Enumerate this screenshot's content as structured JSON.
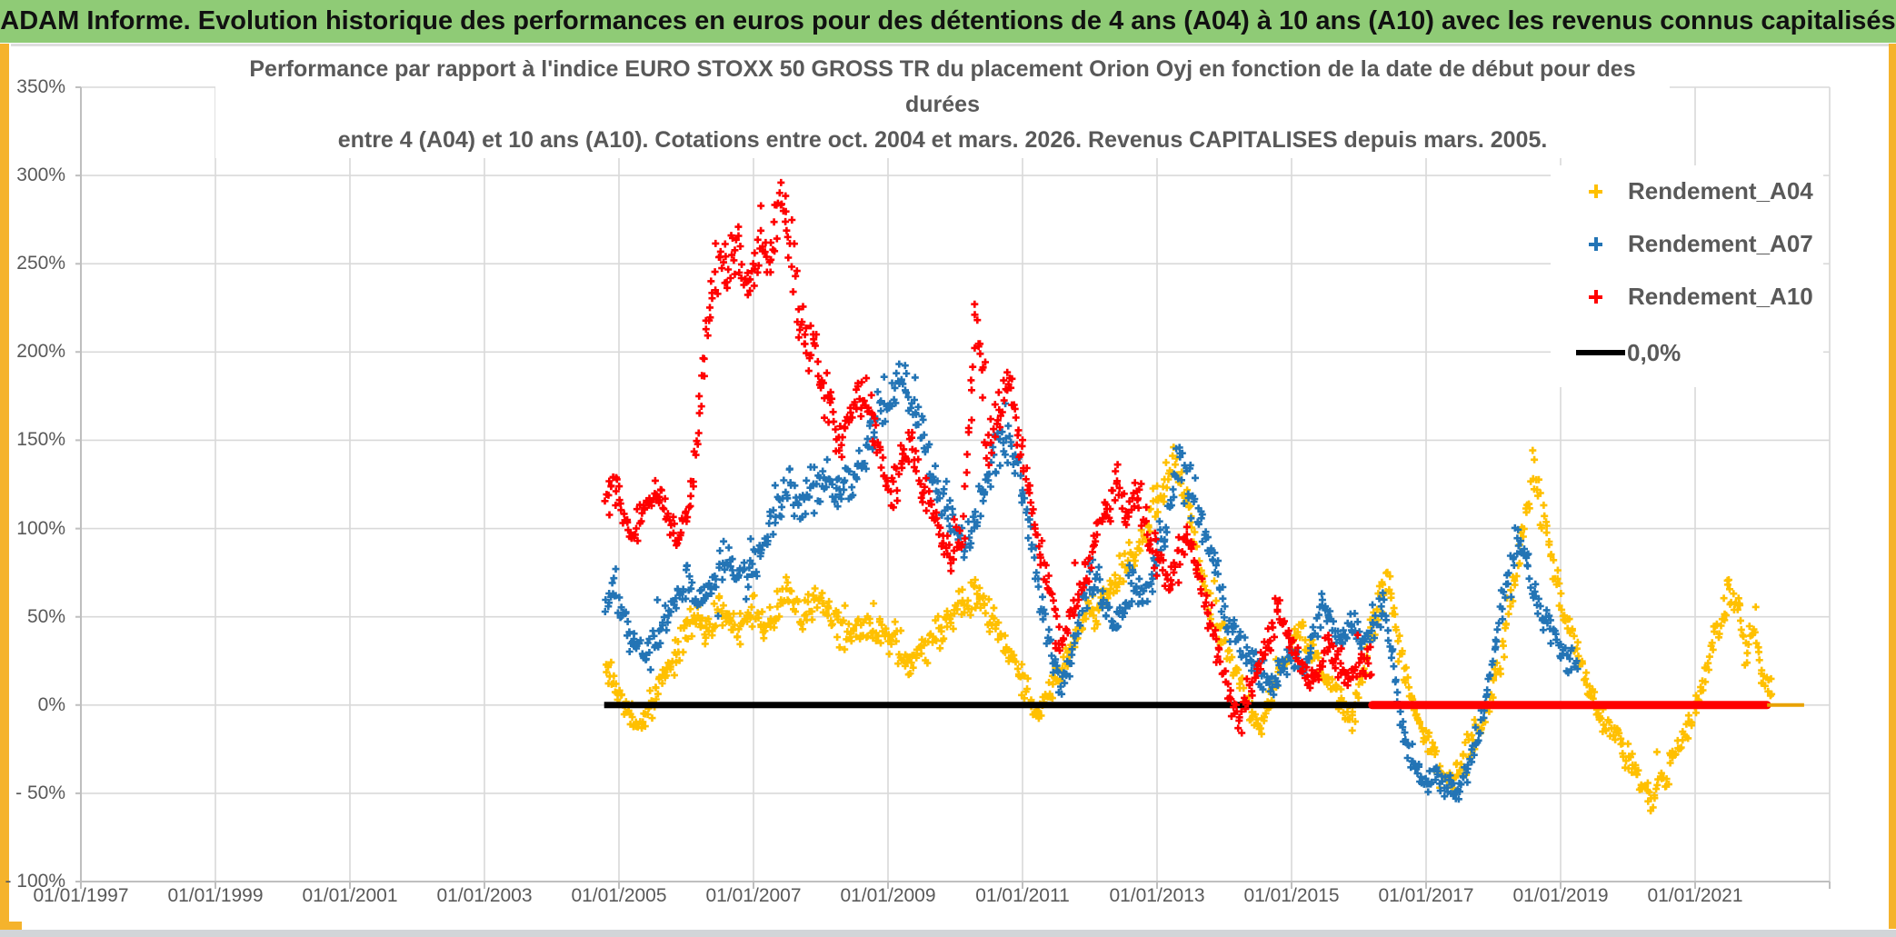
{
  "header": {
    "title": "ADAM Informe. Evolution historique des performances en euros pour des détentions de 4 ans (A04) à 10 ans (A10) avec les revenus connus capitalisés"
  },
  "legend": {
    "items": [
      {
        "label": "Rendement_A04",
        "color": "#FFC000",
        "marker": "plus"
      },
      {
        "label": "Rendement_A07",
        "color": "#2374B5",
        "marker": "plus"
      },
      {
        "label": "Rendement_A10",
        "color": "#FF0000",
        "marker": "plus"
      },
      {
        "label": "0,0%",
        "color": "#000000",
        "marker": "line"
      }
    ]
  },
  "chart_data": {
    "type": "scatter",
    "title_line1": "Performance par rapport à l'indice EURO STOXX 50 GROSS TR  du placement Orion Oyj en fonction de la date de début pour des durées",
    "title_line2": "entre 4 (A04) et 10 ans (A10). Cotations entre oct. 2004 et mars. 2026. Revenus CAPITALISES depuis mars. 2005.",
    "x_axis": {
      "labels": [
        "01/01/1997",
        "01/01/1999",
        "01/01/2001",
        "01/01/2003",
        "01/01/2005",
        "01/01/2007",
        "01/01/2009",
        "01/01/2011",
        "01/01/2013",
        "01/01/2015",
        "01/01/2017",
        "01/01/2019",
        "01/01/2021"
      ],
      "min_year": 1997,
      "max_year": 2023,
      "label_step_years": 2,
      "grid": true
    },
    "y_axis": {
      "labels": [
        "350%",
        "300%",
        "250%",
        "200%",
        "150%",
        "100%",
        "50%",
        "0%",
        "- 50%",
        "- 100%"
      ],
      "min": -100,
      "max": 350,
      "step": 50,
      "grid": true
    },
    "zero_line": {
      "label": "0,0%",
      "segments": [
        {
          "from": 2004.78,
          "to": 2016.2,
          "color": "#000000",
          "width": 7,
          "cap": "butt"
        },
        {
          "from": 2016.2,
          "to": 2022.07,
          "color": "#FF0000",
          "width": 9,
          "cap": "round"
        },
        {
          "from": 2022.07,
          "to": 2022.62,
          "color": "#E8A200",
          "width": 4,
          "cap": "butt"
        }
      ]
    },
    "series": [
      {
        "name": "Rendement_A04",
        "color": "#FFC000",
        "anchors": [
          [
            2004.8,
            22
          ],
          [
            2004.95,
            12
          ],
          [
            2005.1,
            -3
          ],
          [
            2005.25,
            -12
          ],
          [
            2005.4,
            -4
          ],
          [
            2005.55,
            8
          ],
          [
            2005.7,
            18
          ],
          [
            2005.85,
            30
          ],
          [
            2006.0,
            45
          ],
          [
            2006.15,
            52
          ],
          [
            2006.3,
            40
          ],
          [
            2006.5,
            58
          ],
          [
            2006.65,
            48
          ],
          [
            2006.8,
            42
          ],
          [
            2007.0,
            55
          ],
          [
            2007.15,
            45
          ],
          [
            2007.3,
            52
          ],
          [
            2007.5,
            63
          ],
          [
            2007.7,
            50
          ],
          [
            2007.9,
            60
          ],
          [
            2008.1,
            55
          ],
          [
            2008.3,
            44
          ],
          [
            2008.5,
            40
          ],
          [
            2008.7,
            46
          ],
          [
            2008.9,
            42
          ],
          [
            2009.1,
            35
          ],
          [
            2009.3,
            22
          ],
          [
            2009.5,
            32
          ],
          [
            2009.7,
            40
          ],
          [
            2009.9,
            47
          ],
          [
            2010.1,
            58
          ],
          [
            2010.3,
            65
          ],
          [
            2010.5,
            50
          ],
          [
            2010.7,
            38
          ],
          [
            2010.9,
            25
          ],
          [
            2011.05,
            8
          ],
          [
            2011.2,
            -8
          ],
          [
            2011.35,
            5
          ],
          [
            2011.5,
            15
          ],
          [
            2011.7,
            30
          ],
          [
            2011.9,
            45
          ],
          [
            2012.1,
            55
          ],
          [
            2012.3,
            65
          ],
          [
            2012.5,
            75
          ],
          [
            2012.7,
            88
          ],
          [
            2012.9,
            105
          ],
          [
            2013.1,
            125
          ],
          [
            2013.3,
            140
          ],
          [
            2013.45,
            115
          ],
          [
            2013.6,
            85
          ],
          [
            2013.8,
            55
          ],
          [
            2014.0,
            35
          ],
          [
            2014.2,
            15
          ],
          [
            2014.4,
            -5
          ],
          [
            2014.55,
            -12
          ],
          [
            2014.7,
            5
          ],
          [
            2014.9,
            25
          ],
          [
            2015.1,
            42
          ],
          [
            2015.3,
            30
          ],
          [
            2015.5,
            15
          ],
          [
            2015.7,
            5
          ],
          [
            2015.9,
            -8
          ],
          [
            2016.1,
            25
          ],
          [
            2016.3,
            60
          ],
          [
            2016.45,
            70
          ],
          [
            2016.6,
            30
          ],
          [
            2016.8,
            0
          ],
          [
            2017.0,
            -20
          ],
          [
            2017.2,
            -35
          ],
          [
            2017.4,
            -42
          ],
          [
            2017.6,
            -30
          ],
          [
            2017.8,
            -15
          ],
          [
            2018.0,
            10
          ],
          [
            2018.2,
            45
          ],
          [
            2018.4,
            90
          ],
          [
            2018.6,
            130
          ],
          [
            2018.8,
            95
          ],
          [
            2019.0,
            60
          ],
          [
            2019.2,
            35
          ],
          [
            2019.4,
            10
          ],
          [
            2019.6,
            -8
          ],
          [
            2019.8,
            -15
          ],
          [
            2020.0,
            -28
          ],
          [
            2020.2,
            -45
          ],
          [
            2020.35,
            -53
          ],
          [
            2020.5,
            -45
          ],
          [
            2020.7,
            -28
          ],
          [
            2020.9,
            -10
          ],
          [
            2021.1,
            10
          ],
          [
            2021.3,
            40
          ],
          [
            2021.5,
            62
          ],
          [
            2021.65,
            55
          ],
          [
            2021.75,
            30
          ],
          [
            2021.9,
            45
          ],
          [
            2022.0,
            18
          ],
          [
            2022.15,
            5
          ]
        ]
      },
      {
        "name": "Rendement_A07",
        "color": "#2374B5",
        "anchors": [
          [
            2004.8,
            58
          ],
          [
            2004.95,
            62
          ],
          [
            2005.1,
            48
          ],
          [
            2005.25,
            35
          ],
          [
            2005.4,
            28
          ],
          [
            2005.55,
            38
          ],
          [
            2005.7,
            50
          ],
          [
            2005.85,
            60
          ],
          [
            2006.0,
            68
          ],
          [
            2006.2,
            58
          ],
          [
            2006.4,
            72
          ],
          [
            2006.6,
            85
          ],
          [
            2006.8,
            70
          ],
          [
            2007.0,
            80
          ],
          [
            2007.2,
            95
          ],
          [
            2007.4,
            115
          ],
          [
            2007.55,
            125
          ],
          [
            2007.7,
            110
          ],
          [
            2007.9,
            120
          ],
          [
            2008.1,
            130
          ],
          [
            2008.3,
            115
          ],
          [
            2008.5,
            130
          ],
          [
            2008.7,
            150
          ],
          [
            2008.9,
            168
          ],
          [
            2009.1,
            180
          ],
          [
            2009.25,
            185
          ],
          [
            2009.4,
            170
          ],
          [
            2009.55,
            150
          ],
          [
            2009.7,
            130
          ],
          [
            2009.85,
            115
          ],
          [
            2010.0,
            100
          ],
          [
            2010.15,
            88
          ],
          [
            2010.3,
            105
          ],
          [
            2010.45,
            125
          ],
          [
            2010.6,
            142
          ],
          [
            2010.75,
            155
          ],
          [
            2010.9,
            140
          ],
          [
            2011.0,
            120
          ],
          [
            2011.15,
            90
          ],
          [
            2011.3,
            55
          ],
          [
            2011.45,
            25
          ],
          [
            2011.6,
            10
          ],
          [
            2011.75,
            30
          ],
          [
            2011.9,
            60
          ],
          [
            2012.05,
            75
          ],
          [
            2012.2,
            60
          ],
          [
            2012.35,
            45
          ],
          [
            2012.5,
            55
          ],
          [
            2012.65,
            70
          ],
          [
            2012.8,
            60
          ],
          [
            2012.95,
            75
          ],
          [
            2013.1,
            95
          ],
          [
            2013.25,
            125
          ],
          [
            2013.35,
            143
          ],
          [
            2013.5,
            120
          ],
          [
            2013.65,
            105
          ],
          [
            2013.8,
            85
          ],
          [
            2013.95,
            65
          ],
          [
            2014.1,
            45
          ],
          [
            2014.25,
            35
          ],
          [
            2014.4,
            25
          ],
          [
            2014.55,
            15
          ],
          [
            2014.7,
            10
          ],
          [
            2014.85,
            20
          ],
          [
            2015.0,
            30
          ],
          [
            2015.15,
            20
          ],
          [
            2015.3,
            35
          ],
          [
            2015.45,
            55
          ],
          [
            2015.6,
            45
          ],
          [
            2015.75,
            35
          ],
          [
            2015.9,
            42
          ],
          [
            2016.05,
            35
          ],
          [
            2016.2,
            45
          ],
          [
            2016.35,
            55
          ],
          [
            2016.5,
            25
          ],
          [
            2016.65,
            -15
          ],
          [
            2016.8,
            -35
          ],
          [
            2017.0,
            -45
          ],
          [
            2017.15,
            -40
          ],
          [
            2017.3,
            -48
          ],
          [
            2017.45,
            -50
          ],
          [
            2017.6,
            -38
          ],
          [
            2017.75,
            -20
          ],
          [
            2017.9,
            5
          ],
          [
            2018.05,
            40
          ],
          [
            2018.2,
            70
          ],
          [
            2018.35,
            95
          ],
          [
            2018.5,
            80
          ],
          [
            2018.65,
            60
          ],
          [
            2018.8,
            45
          ],
          [
            2018.95,
            35
          ],
          [
            2019.1,
            28
          ],
          [
            2019.25,
            20
          ]
        ]
      },
      {
        "name": "Rendement_A10",
        "color": "#FF0000",
        "anchors": [
          [
            2004.8,
            115
          ],
          [
            2004.95,
            125
          ],
          [
            2005.1,
            105
          ],
          [
            2005.25,
            95
          ],
          [
            2005.4,
            110
          ],
          [
            2005.55,
            125
          ],
          [
            2005.7,
            108
          ],
          [
            2005.85,
            88
          ],
          [
            2006.0,
            105
          ],
          [
            2006.1,
            130
          ],
          [
            2006.2,
            165
          ],
          [
            2006.3,
            205
          ],
          [
            2006.4,
            235
          ],
          [
            2006.5,
            255
          ],
          [
            2006.6,
            240
          ],
          [
            2006.7,
            268
          ],
          [
            2006.8,
            250
          ],
          [
            2006.9,
            235
          ],
          [
            2007.0,
            248
          ],
          [
            2007.1,
            260
          ],
          [
            2007.25,
            255
          ],
          [
            2007.4,
            285
          ],
          [
            2007.5,
            275
          ],
          [
            2007.6,
            245
          ],
          [
            2007.7,
            215
          ],
          [
            2007.8,
            195
          ],
          [
            2007.9,
            205
          ],
          [
            2008.0,
            185
          ],
          [
            2008.15,
            165
          ],
          [
            2008.3,
            150
          ],
          [
            2008.45,
            165
          ],
          [
            2008.6,
            180
          ],
          [
            2008.75,
            160
          ],
          [
            2008.9,
            140
          ],
          [
            2009.05,
            120
          ],
          [
            2009.2,
            135
          ],
          [
            2009.35,
            150
          ],
          [
            2009.5,
            130
          ],
          [
            2009.65,
            110
          ],
          [
            2009.8,
            95
          ],
          [
            2009.95,
            85
          ],
          [
            2010.1,
            100
          ],
          [
            2010.25,
            180
          ],
          [
            2010.3,
            225
          ],
          [
            2010.4,
            185
          ],
          [
            2010.5,
            140
          ],
          [
            2010.65,
            170
          ],
          [
            2010.8,
            185
          ],
          [
            2010.95,
            150
          ],
          [
            2011.1,
            120
          ],
          [
            2011.25,
            90
          ],
          [
            2011.4,
            70
          ],
          [
            2011.5,
            45
          ],
          [
            2011.6,
            30
          ],
          [
            2011.7,
            50
          ],
          [
            2011.85,
            65
          ],
          [
            2012.0,
            80
          ],
          [
            2012.1,
            95
          ],
          [
            2012.25,
            110
          ],
          [
            2012.4,
            125
          ],
          [
            2012.55,
            105
          ],
          [
            2012.7,
            125
          ],
          [
            2012.85,
            100
          ],
          [
            2013.0,
            85
          ],
          [
            2013.15,
            70
          ],
          [
            2013.3,
            85
          ],
          [
            2013.45,
            95
          ],
          [
            2013.6,
            75
          ],
          [
            2013.75,
            55
          ],
          [
            2013.9,
            30
          ],
          [
            2014.05,
            10
          ],
          [
            2014.2,
            -8
          ],
          [
            2014.35,
            5
          ],
          [
            2014.5,
            20
          ],
          [
            2014.65,
            35
          ],
          [
            2014.8,
            50
          ],
          [
            2014.95,
            40
          ],
          [
            2015.1,
            25
          ],
          [
            2015.25,
            10
          ],
          [
            2015.4,
            20
          ],
          [
            2015.55,
            35
          ],
          [
            2015.7,
            25
          ],
          [
            2015.85,
            15
          ],
          [
            2016.0,
            22
          ],
          [
            2016.1,
            28
          ],
          [
            2016.2,
            15
          ]
        ]
      }
    ],
    "colors": {
      "grid": "#D9D9D9",
      "axis": "#BFBFBF",
      "label": "#595959",
      "header_green": "#8FCB76",
      "edge_gold": "#F5B32C"
    }
  }
}
